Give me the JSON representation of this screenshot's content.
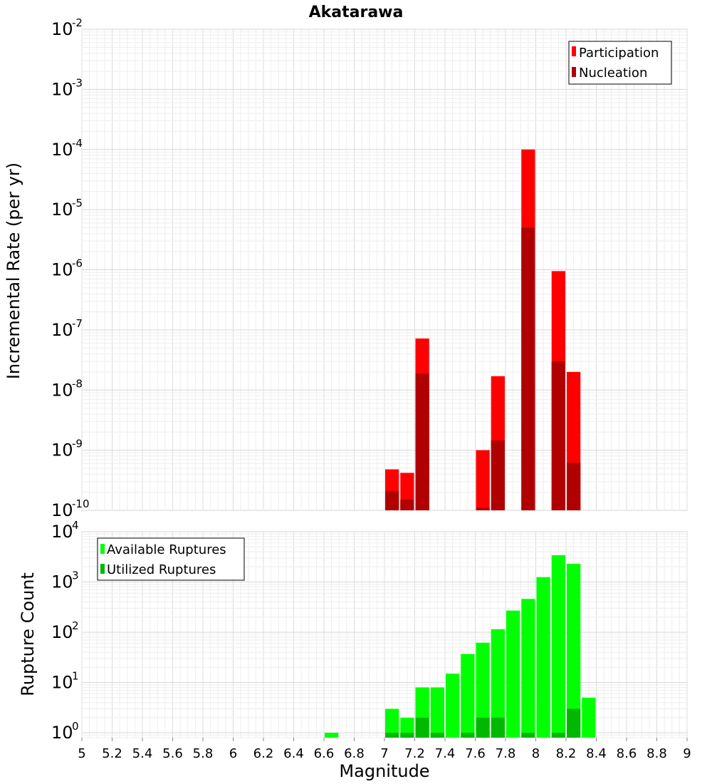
{
  "chart_data": [
    {
      "type": "bar",
      "title": "Akatarawa",
      "ylabel": "Incremental Rate (per yr)",
      "xlabel": "",
      "xlim": [
        5,
        9
      ],
      "ylim": [
        1e-10,
        0.01
      ],
      "yscale": "log",
      "grid": true,
      "legend_position": "top-right",
      "bin_width": 0.1,
      "series": [
        {
          "name": "Participation",
          "color": "#ff0000",
          "x": [
            7.05,
            7.15,
            7.25,
            7.65,
            7.75,
            7.95,
            8.15,
            8.25
          ],
          "values": [
            4.8e-10,
            4.2e-10,
            7.2e-08,
            1e-09,
            1.7e-08,
            0.0001,
            9.5e-07,
            2e-08
          ]
        },
        {
          "name": "Nucleation",
          "color": "#b00000",
          "x": [
            7.05,
            7.15,
            7.25,
            7.65,
            7.75,
            7.95,
            8.15,
            8.25
          ],
          "values": [
            2.1e-10,
            1.5e-10,
            1.9e-08,
            1.1e-10,
            1.45e-09,
            5e-06,
            3e-08,
            6.2e-10
          ]
        }
      ],
      "y_ticks": [
        {
          "base": "10",
          "exp": "-10"
        },
        {
          "base": "10",
          "exp": "-9"
        },
        {
          "base": "10",
          "exp": "-8"
        },
        {
          "base": "10",
          "exp": "-7"
        },
        {
          "base": "10",
          "exp": "-6"
        },
        {
          "base": "10",
          "exp": "-5"
        },
        {
          "base": "10",
          "exp": "-4"
        },
        {
          "base": "10",
          "exp": "-3"
        },
        {
          "base": "10",
          "exp": "-2"
        }
      ]
    },
    {
      "type": "bar",
      "title": "",
      "ylabel": "Rupture Count",
      "xlabel": "Magnitude",
      "xlim": [
        5,
        9
      ],
      "ylim": [
        0.8,
        10000
      ],
      "yscale": "log",
      "grid": true,
      "legend_position": "top-left",
      "bin_width": 0.1,
      "series": [
        {
          "name": "Available Ruptures",
          "color": "#00ff00",
          "x": [
            6.65,
            7.05,
            7.15,
            7.25,
            7.35,
            7.45,
            7.55,
            7.65,
            7.75,
            7.85,
            7.95,
            8.05,
            8.15,
            8.25,
            8.35
          ],
          "values": [
            1,
            3,
            2,
            8,
            8,
            15,
            37,
            62,
            115,
            270,
            460,
            1250,
            3400,
            2300,
            5
          ]
        },
        {
          "name": "Utilized Ruptures",
          "color": "#00b800",
          "x": [
            6.65,
            7.05,
            7.15,
            7.25,
            7.35,
            7.45,
            7.55,
            7.65,
            7.75,
            7.85,
            7.95,
            8.05,
            8.15,
            8.25,
            8.35
          ],
          "values": [
            0,
            1,
            1,
            2,
            1,
            0,
            1,
            2,
            2,
            0,
            1,
            0,
            1,
            3,
            0
          ]
        }
      ],
      "y_ticks": [
        {
          "base": "10",
          "exp": "0"
        },
        {
          "base": "10",
          "exp": "1"
        },
        {
          "base": "10",
          "exp": "2"
        },
        {
          "base": "10",
          "exp": "3"
        },
        {
          "base": "10",
          "exp": "4"
        }
      ],
      "x_ticks": [
        "5",
        "5.2",
        "5.4",
        "5.6",
        "5.8",
        "6",
        "6.2",
        "6.4",
        "6.6",
        "6.8",
        "7",
        "7.2",
        "7.4",
        "7.6",
        "7.8",
        "8",
        "8.2",
        "8.4",
        "8.6",
        "8.8",
        "9"
      ]
    }
  ]
}
